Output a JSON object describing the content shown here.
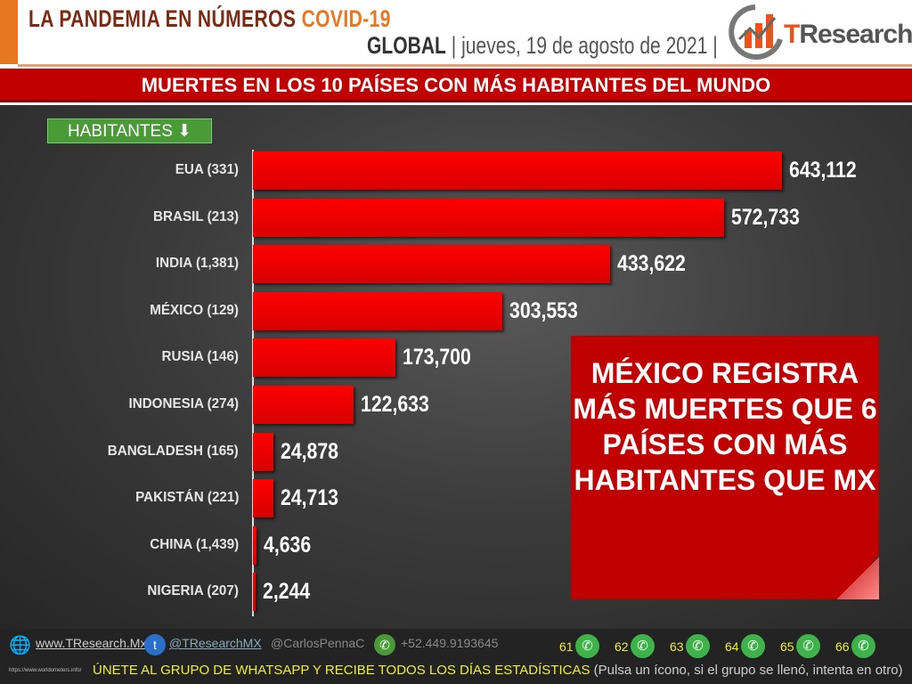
{
  "header": {
    "title": "LA PANDEMIA EN NÚMEROS",
    "title_accent": "COVID-19",
    "scope": "GLOBAL",
    "date": "jueves, 19 de agosto de 2021",
    "logo": "TResearch"
  },
  "banner": "MUERTES EN LOS 10 PAÍSES CON MÁS HABITANTES DEL MUNDO",
  "chart_data": {
    "type": "bar",
    "orientation": "horizontal",
    "sort_label": "HABITANTES",
    "sort_icon": "arrow-down-circle-icon",
    "categories": [
      "EUA (331)",
      "BRASIL (213)",
      "INDIA (1,381)",
      "MÉXICO (129)",
      "RUSIA (146)",
      "INDONESIA (274)",
      "BANGLADESH (165)",
      "PAKISTÁN (221)",
      "CHINA (1,439)",
      "NIGERIA (207)"
    ],
    "values": [
      643112,
      572733,
      433622,
      303553,
      173700,
      122633,
      24878,
      24713,
      4636,
      2244
    ],
    "labels": [
      "643,112",
      "572,733",
      "433,622",
      "303,553",
      "173,700",
      "122,633",
      "24,878",
      "24,713",
      "4,636",
      "2,244"
    ],
    "bar_color": "#ff0000"
  },
  "callout": "MÉXICO REGISTRA MÁS MUERTES QUE 6 PAÍSES CON MÁS HABITANTES QUE MX",
  "footer": {
    "website": "www.TResearch.Mx",
    "twitter": "@TResearchMX",
    "twitter2": "@CarlosPennaC",
    "phone": "+52.449.9193645",
    "groups": [
      "61",
      "62",
      "63",
      "64",
      "65",
      "66"
    ],
    "join": "ÚNETE AL GRUPO DE WHATSAPP Y RECIBE TODOS LOS DÍAS ESTADÍSTICAS",
    "join_note": "(Pulsa un ícono, si el grupo se llenó, intenta en otro)",
    "source": "https://www.worldometers.info/"
  }
}
